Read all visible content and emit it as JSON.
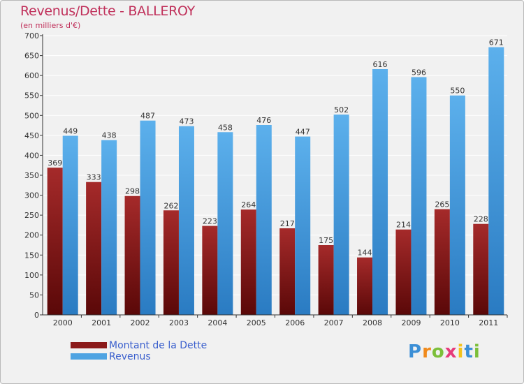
{
  "chart_data": {
    "type": "bar",
    "title": "Revenus/Dette - BALLEROY",
    "subtitle": "(en milliers d'€)",
    "xlabel": "",
    "ylabel": "",
    "categories": [
      "2000",
      "2001",
      "2002",
      "2003",
      "2004",
      "2005",
      "2006",
      "2007",
      "2008",
      "2009",
      "2010",
      "2011"
    ],
    "series": [
      {
        "name": "Montant de la Dette",
        "color": "#8b1a1a",
        "values": [
          369,
          333,
          298,
          262,
          223,
          264,
          217,
          175,
          144,
          214,
          265,
          228
        ]
      },
      {
        "name": "Revenus",
        "color": "#4ea3e2",
        "values": [
          449,
          438,
          487,
          473,
          458,
          476,
          447,
          502,
          616,
          596,
          550,
          671
        ]
      }
    ],
    "ylim": [
      0,
      700
    ],
    "yticks": [
      0,
      50,
      100,
      150,
      200,
      250,
      300,
      350,
      400,
      450,
      500,
      550,
      600,
      650,
      700
    ],
    "grid": true,
    "legend_position": "bottom-left"
  },
  "legend": {
    "items": [
      {
        "label": "Montant de la Dette",
        "color": "#8b1a1a"
      },
      {
        "label": "Revenus",
        "color": "#4ea3e2"
      }
    ]
  },
  "logo": {
    "text": "Proxiti",
    "letters": [
      "P",
      "r",
      "o",
      "x",
      "i",
      "t",
      "i"
    ],
    "colors": [
      "#3c8fd6",
      "#f08a1c",
      "#7cbf3a",
      "#e63a7a",
      "#f4c21b",
      "#3c8fd6",
      "#7cbf3a"
    ]
  }
}
